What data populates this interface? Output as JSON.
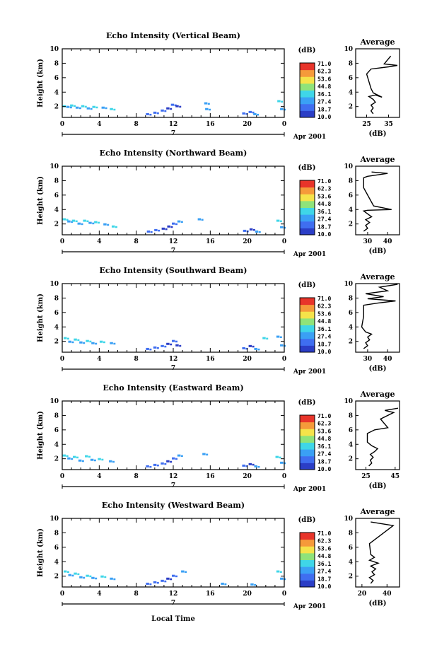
{
  "colorbar": {
    "unit": "(dB)",
    "levels": [
      "71.0",
      "62.3",
      "53.6",
      "44.8",
      "36.1",
      "27.4",
      "18.7",
      "10.0"
    ],
    "colors": [
      "#2b3ec6",
      "#3f6ef0",
      "#3aa0f5",
      "#3fd6e8",
      "#8fe37a",
      "#f5e34a",
      "#f59a3a",
      "#e8342a"
    ]
  },
  "x_axis": {
    "ticks": [
      "0",
      "4",
      "8",
      "12",
      "16",
      "20",
      "0"
    ],
    "date_label": "Apr 2001",
    "marker_label": "7",
    "title": "Local Time"
  },
  "y_axis": {
    "label": "Height (km)",
    "ticks": [
      "2",
      "4",
      "6",
      "8",
      "10"
    ]
  },
  "chart_data": [
    {
      "type": "heatmap",
      "title": "Echo Intensity (Vertical Beam)",
      "ylabel": "Height (km)",
      "xlabel": "Local Time",
      "xlim": [
        0,
        24
      ],
      "ylim": [
        0.5,
        10
      ],
      "cells": [
        [
          0.2,
          2.0,
          "#3fd6e8"
        ],
        [
          0.6,
          1.9,
          "#3aa0f5"
        ],
        [
          1.0,
          2.1,
          "#3fd6e8"
        ],
        [
          1.6,
          1.8,
          "#3aa0f5"
        ],
        [
          2.2,
          2.0,
          "#3fd6e8"
        ],
        [
          2.8,
          1.7,
          "#3aa0f5"
        ],
        [
          3.4,
          1.9,
          "#3fd6e8"
        ],
        [
          4.4,
          1.8,
          "#3aa0f5"
        ],
        [
          5.3,
          1.6,
          "#3fd6e8"
        ],
        [
          9.2,
          0.9,
          "#3f6ef0"
        ],
        [
          10.0,
          1.1,
          "#3f6ef0"
        ],
        [
          10.8,
          1.4,
          "#3f6ef0"
        ],
        [
          11.4,
          1.7,
          "#2b3ec6"
        ],
        [
          11.9,
          2.2,
          "#3f6ef0"
        ],
        [
          12.4,
          2.0,
          "#2b3ec6"
        ],
        [
          15.5,
          2.4,
          "#3aa0f5"
        ],
        [
          15.6,
          1.6,
          "#3aa0f5"
        ],
        [
          19.6,
          1.0,
          "#3f6ef0"
        ],
        [
          20.3,
          1.2,
          "#3f6ef0"
        ],
        [
          20.8,
          0.9,
          "#3aa0f5"
        ],
        [
          23.4,
          2.7,
          "#3fd6e8"
        ],
        [
          23.7,
          1.6,
          "#3aa0f5"
        ]
      ],
      "profile": {
        "title": "Average",
        "xlabel": "(dB)",
        "xticks": [
          "25",
          "35"
        ],
        "xlim": [
          20,
          40
        ],
        "x": [
          28,
          27,
          28,
          27,
          29,
          28,
          26,
          29,
          32,
          28,
          27,
          26,
          25,
          27,
          35,
          39,
          33,
          36
        ],
        "y": [
          1.0,
          1.4,
          1.8,
          2.2,
          2.6,
          3.0,
          3.4,
          3.6,
          3.3,
          3.9,
          4.5,
          5.5,
          6.5,
          7.2,
          7.5,
          7.7,
          7.9,
          9.0
        ]
      }
    },
    {
      "type": "heatmap",
      "title": "Echo Intensity (Northward Beam)",
      "ylabel": "Height (km)",
      "xlabel": "Local Time",
      "xlim": [
        0,
        24
      ],
      "ylim": [
        0.5,
        10
      ],
      "cells": [
        [
          0.2,
          2.6,
          "#3fd6e8"
        ],
        [
          0.7,
          2.3,
          "#3aa0f5"
        ],
        [
          1.2,
          2.4,
          "#3fd6e8"
        ],
        [
          1.8,
          2.0,
          "#3aa0f5"
        ],
        [
          2.4,
          2.4,
          "#3fd6e8"
        ],
        [
          3.0,
          2.1,
          "#3aa0f5"
        ],
        [
          3.6,
          2.2,
          "#3fd6e8"
        ],
        [
          4.6,
          1.9,
          "#3aa0f5"
        ],
        [
          5.5,
          1.6,
          "#3fd6e8"
        ],
        [
          9.3,
          0.9,
          "#3f6ef0"
        ],
        [
          10.1,
          1.1,
          "#3f6ef0"
        ],
        [
          10.9,
          1.3,
          "#2b3ec6"
        ],
        [
          11.5,
          1.6,
          "#2b3ec6"
        ],
        [
          12.0,
          2.0,
          "#3f6ef0"
        ],
        [
          12.6,
          2.3,
          "#3aa0f5"
        ],
        [
          14.8,
          2.6,
          "#3aa0f5"
        ],
        [
          19.7,
          1.0,
          "#3f6ef0"
        ],
        [
          20.4,
          1.2,
          "#2b3ec6"
        ],
        [
          21.0,
          0.9,
          "#3aa0f5"
        ],
        [
          23.3,
          2.4,
          "#3fd6e8"
        ],
        [
          23.7,
          1.5,
          "#3aa0f5"
        ]
      ],
      "profile": {
        "title": "Average",
        "xlabel": "(dB)",
        "xticks": [
          "30",
          "40"
        ],
        "xlim": [
          24,
          46
        ],
        "x": [
          28,
          30,
          29,
          31,
          29,
          32,
          30,
          28,
          30,
          42,
          33,
          31,
          28,
          28,
          30,
          40,
          32
        ],
        "y": [
          1.0,
          1.4,
          1.8,
          2.2,
          2.6,
          3.0,
          3.4,
          3.8,
          3.9,
          4.0,
          4.5,
          5.5,
          7.0,
          8.4,
          8.6,
          9.0,
          9.2
        ]
      }
    },
    {
      "type": "heatmap",
      "title": "Echo Intensity (Southward Beam)",
      "ylabel": "Height (km)",
      "xlabel": "Local Time",
      "xlim": [
        0,
        24
      ],
      "ylim": [
        0.5,
        10
      ],
      "cells": [
        [
          0.3,
          2.4,
          "#3fd6e8"
        ],
        [
          0.8,
          1.9,
          "#3aa0f5"
        ],
        [
          1.4,
          2.2,
          "#3fd6e8"
        ],
        [
          2.0,
          1.8,
          "#3aa0f5"
        ],
        [
          2.7,
          2.0,
          "#3fd6e8"
        ],
        [
          3.3,
          1.7,
          "#3aa0f5"
        ],
        [
          4.2,
          1.9,
          "#3fd6e8"
        ],
        [
          5.3,
          1.7,
          "#3aa0f5"
        ],
        [
          9.2,
          0.9,
          "#3f6ef0"
        ],
        [
          10.0,
          1.1,
          "#3f6ef0"
        ],
        [
          10.8,
          1.3,
          "#3f6ef0"
        ],
        [
          11.4,
          1.6,
          "#2b3ec6"
        ],
        [
          12.0,
          2.0,
          "#3f6ef0"
        ],
        [
          12.4,
          1.4,
          "#2b3ec6"
        ],
        [
          19.6,
          1.0,
          "#3f6ef0"
        ],
        [
          20.3,
          1.3,
          "#2b3ec6"
        ],
        [
          20.9,
          0.9,
          "#3aa0f5"
        ],
        [
          21.8,
          2.4,
          "#3fd6e8"
        ],
        [
          23.3,
          2.6,
          "#3aa0f5"
        ],
        [
          23.7,
          1.4,
          "#3aa0f5"
        ]
      ],
      "profile": {
        "title": "Average",
        "xlabel": "(dB)",
        "xticks": [
          "30",
          "40"
        ],
        "xlim": [
          24,
          46
        ],
        "x": [
          28,
          30,
          29,
          31,
          30,
          32,
          29,
          27,
          28,
          28,
          35,
          44,
          30,
          38,
          29,
          40,
          36,
          45
        ],
        "y": [
          1.0,
          1.4,
          1.8,
          2.2,
          2.6,
          3.0,
          3.3,
          4.0,
          5.5,
          7.0,
          7.3,
          7.6,
          7.9,
          8.2,
          8.6,
          9.0,
          9.5,
          9.9
        ]
      }
    },
    {
      "type": "heatmap",
      "title": "Echo Intensity (Eastward Beam)",
      "ylabel": "Height (km)",
      "xlabel": "Local Time",
      "xlim": [
        0,
        24
      ],
      "ylim": [
        0.5,
        10
      ],
      "cells": [
        [
          0.2,
          2.4,
          "#3fd6e8"
        ],
        [
          0.7,
          2.0,
          "#3aa0f5"
        ],
        [
          1.3,
          2.2,
          "#3fd6e8"
        ],
        [
          1.9,
          1.7,
          "#3aa0f5"
        ],
        [
          2.6,
          2.3,
          "#3fd6e8"
        ],
        [
          3.2,
          1.8,
          "#3aa0f5"
        ],
        [
          4.0,
          1.9,
          "#3fd6e8"
        ],
        [
          5.2,
          1.6,
          "#3aa0f5"
        ],
        [
          9.2,
          0.9,
          "#3f6ef0"
        ],
        [
          10.0,
          1.1,
          "#3f6ef0"
        ],
        [
          10.8,
          1.3,
          "#3f6ef0"
        ],
        [
          11.4,
          1.6,
          "#2b3ec6"
        ],
        [
          12.0,
          2.0,
          "#3f6ef0"
        ],
        [
          12.6,
          2.4,
          "#3aa0f5"
        ],
        [
          15.3,
          2.6,
          "#3aa0f5"
        ],
        [
          19.6,
          1.0,
          "#3f6ef0"
        ],
        [
          20.3,
          1.2,
          "#2b3ec6"
        ],
        [
          20.9,
          0.9,
          "#3aa0f5"
        ],
        [
          23.2,
          2.2,
          "#3fd6e8"
        ],
        [
          23.7,
          1.4,
          "#3aa0f5"
        ]
      ],
      "profile": {
        "title": "Average",
        "xlabel": "(dB)",
        "xticks": [
          "25",
          "45"
        ],
        "xlim": [
          18,
          48
        ],
        "x": [
          27,
          29,
          28,
          30,
          28,
          31,
          33,
          29,
          26,
          26,
          31,
          40,
          35,
          44,
          38,
          47
        ],
        "y": [
          1.0,
          1.4,
          1.8,
          2.2,
          2.6,
          3.0,
          3.4,
          3.8,
          4.3,
          5.5,
          6.0,
          6.3,
          7.5,
          8.4,
          8.7,
          9.0
        ]
      }
    },
    {
      "type": "heatmap",
      "title": "Echo Intensity (Westward Beam)",
      "ylabel": "Height (km)",
      "xlabel": "Local Time",
      "xlim": [
        0,
        24
      ],
      "ylim": [
        0.5,
        10
      ],
      "cells": [
        [
          0.3,
          2.6,
          "#3fd6e8"
        ],
        [
          0.8,
          2.1,
          "#3aa0f5"
        ],
        [
          1.4,
          2.3,
          "#3fd6e8"
        ],
        [
          2.0,
          1.8,
          "#3aa0f5"
        ],
        [
          2.7,
          2.0,
          "#3fd6e8"
        ],
        [
          3.3,
          1.7,
          "#3aa0f5"
        ],
        [
          4.3,
          1.9,
          "#3fd6e8"
        ],
        [
          5.3,
          1.6,
          "#3aa0f5"
        ],
        [
          9.2,
          0.9,
          "#3f6ef0"
        ],
        [
          10.0,
          1.1,
          "#3f6ef0"
        ],
        [
          10.8,
          1.3,
          "#3f6ef0"
        ],
        [
          11.4,
          1.6,
          "#2b3ec6"
        ],
        [
          12.0,
          2.0,
          "#3f6ef0"
        ],
        [
          13.0,
          2.6,
          "#3aa0f5"
        ],
        [
          17.3,
          0.9,
          "#3aa0f5"
        ],
        [
          20.5,
          0.8,
          "#3aa0f5"
        ],
        [
          23.3,
          2.6,
          "#3fd6e8"
        ],
        [
          23.7,
          1.6,
          "#3aa0f5"
        ]
      ],
      "profile": {
        "title": "Average",
        "xlabel": "(dB)",
        "xticks": [
          "20",
          "40"
        ],
        "xlim": [
          15,
          50
        ],
        "x": [
          27,
          29,
          26,
          30,
          28,
          31,
          27,
          33,
          26,
          30,
          27,
          26,
          45,
          27
        ],
        "y": [
          1.0,
          1.4,
          1.8,
          2.2,
          2.6,
          3.0,
          3.4,
          3.8,
          4.2,
          4.6,
          5.0,
          6.5,
          9.0,
          9.5
        ]
      }
    }
  ]
}
